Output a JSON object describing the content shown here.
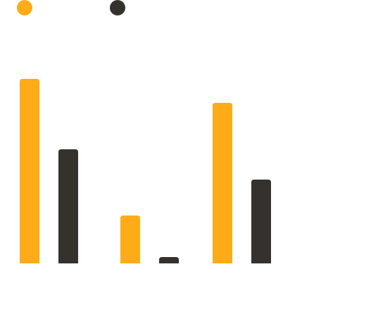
{
  "chart_data": {
    "type": "bar",
    "categories": [
      null,
      null,
      null
    ],
    "series": [
      {
        "color": "#fdac17",
        "values": [
          262,
          68,
          228
        ]
      },
      {
        "color": "#35312d",
        "values": [
          162,
          9,
          119
        ]
      }
    ]
  }
}
